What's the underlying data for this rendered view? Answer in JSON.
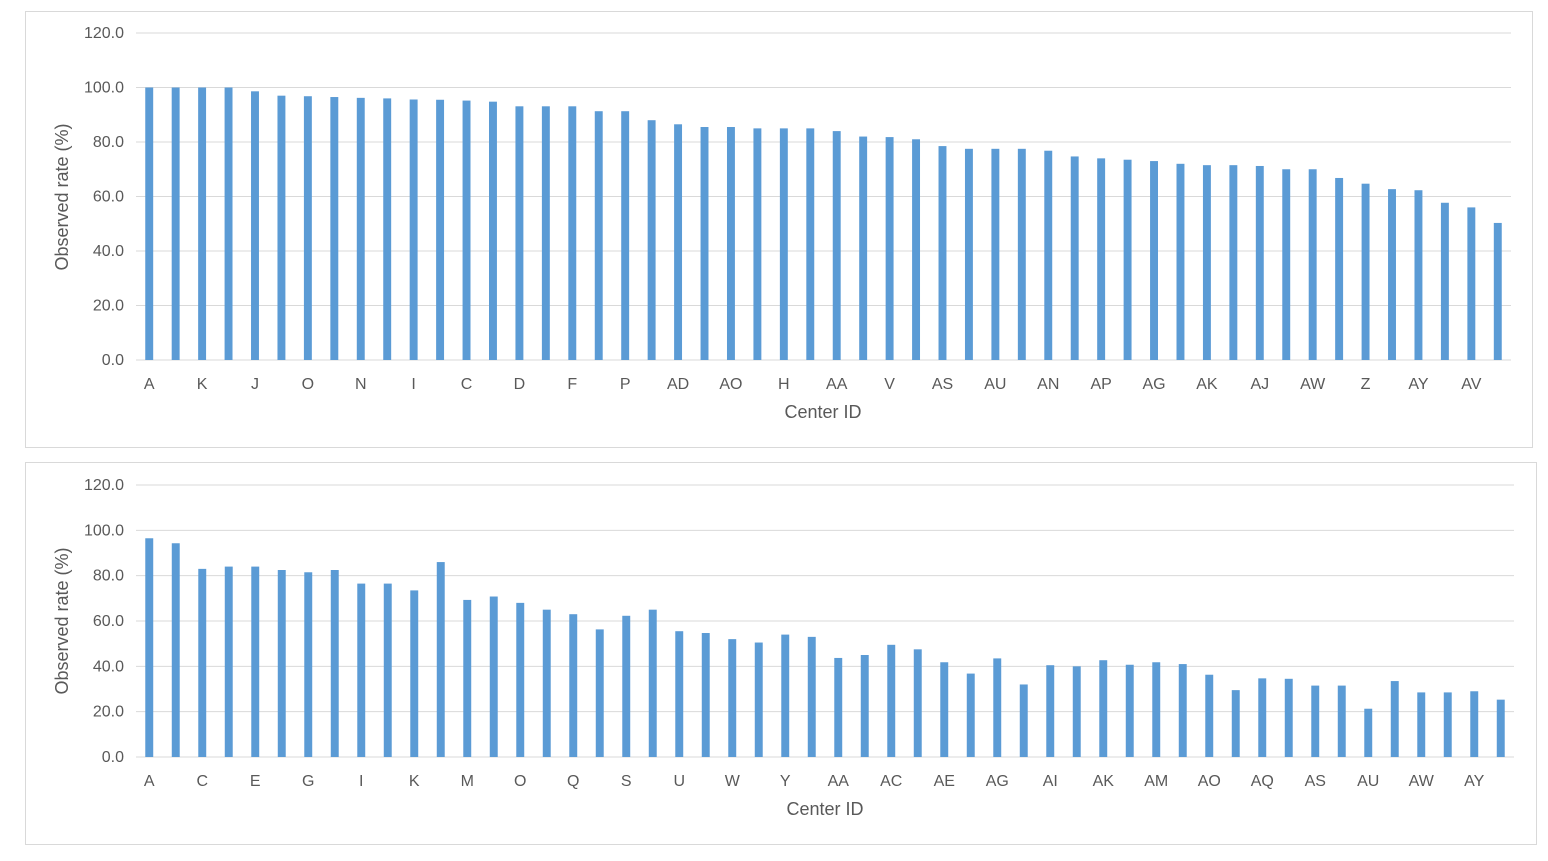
{
  "colors": {
    "bar": "#5b9bd5",
    "grid": "#d9d9d9",
    "text": "#595959"
  },
  "chart_data": [
    {
      "type": "bar",
      "xlabel": "Center ID",
      "ylabel": "Observed rate (%)",
      "ylim": [
        0,
        120
      ],
      "yticks": [
        "0.0",
        "20.0",
        "40.0",
        "60.0",
        "80.0",
        "100.0",
        "120.0"
      ],
      "grid": true,
      "legend": "none",
      "shown_tick_labels": [
        "A",
        "K",
        "J",
        "O",
        "N",
        "I",
        "C",
        "D",
        "F",
        "P",
        "AD",
        "AO",
        "H",
        "AA",
        "V",
        "AS",
        "AU",
        "AN",
        "AP",
        "AG",
        "AK",
        "AJ",
        "AW",
        "Z",
        "AY",
        "AV"
      ],
      "values": [
        100,
        100,
        100,
        100,
        98.6,
        97,
        96.8,
        96.5,
        96.2,
        96,
        95.6,
        95.5,
        95.2,
        94.8,
        93.1,
        93.1,
        93.1,
        91.3,
        91.3,
        88,
        86.5,
        85.5,
        85.5,
        85,
        85,
        85,
        84,
        82,
        81.8,
        81,
        78.5,
        77.5,
        77.5,
        77.5,
        76.8,
        74.7,
        74,
        73.5,
        73,
        72,
        71.5,
        71.5,
        71.2,
        70,
        70,
        66.8,
        64.7,
        62.7,
        62.3,
        57.7,
        56,
        50.3
      ]
    },
    {
      "type": "bar",
      "xlabel": "Center ID",
      "ylabel": "Observed rate (%)",
      "ylim": [
        0,
        120
      ],
      "yticks": [
        "0.0",
        "20.0",
        "40.0",
        "60.0",
        "80.0",
        "100.0",
        "120.0"
      ],
      "grid": true,
      "legend": "none",
      "shown_tick_labels": [
        "A",
        "C",
        "E",
        "G",
        "I",
        "K",
        "M",
        "O",
        "Q",
        "S",
        "U",
        "W",
        "Y",
        "AA",
        "AC",
        "AE",
        "AG",
        "AI",
        "AK",
        "AM",
        "AO",
        "AQ",
        "AS",
        "AU",
        "AW",
        "AY"
      ],
      "values": [
        96.5,
        94.3,
        83,
        84,
        84,
        82.5,
        81.5,
        82.5,
        76.5,
        76.5,
        73.5,
        86,
        69.3,
        70.8,
        68,
        65,
        63,
        56.3,
        62.3,
        65,
        55.5,
        54.7,
        52,
        50.5,
        54,
        53,
        43.7,
        45,
        49.5,
        47.5,
        41.8,
        36.8,
        43.5,
        32,
        40.5,
        40,
        42.7,
        40.7,
        41.8,
        41,
        36.3,
        29.5,
        34.7,
        34.5,
        31.5,
        31.5,
        21.3,
        33.5,
        28.5,
        28.5,
        29,
        25.3
      ]
    }
  ]
}
